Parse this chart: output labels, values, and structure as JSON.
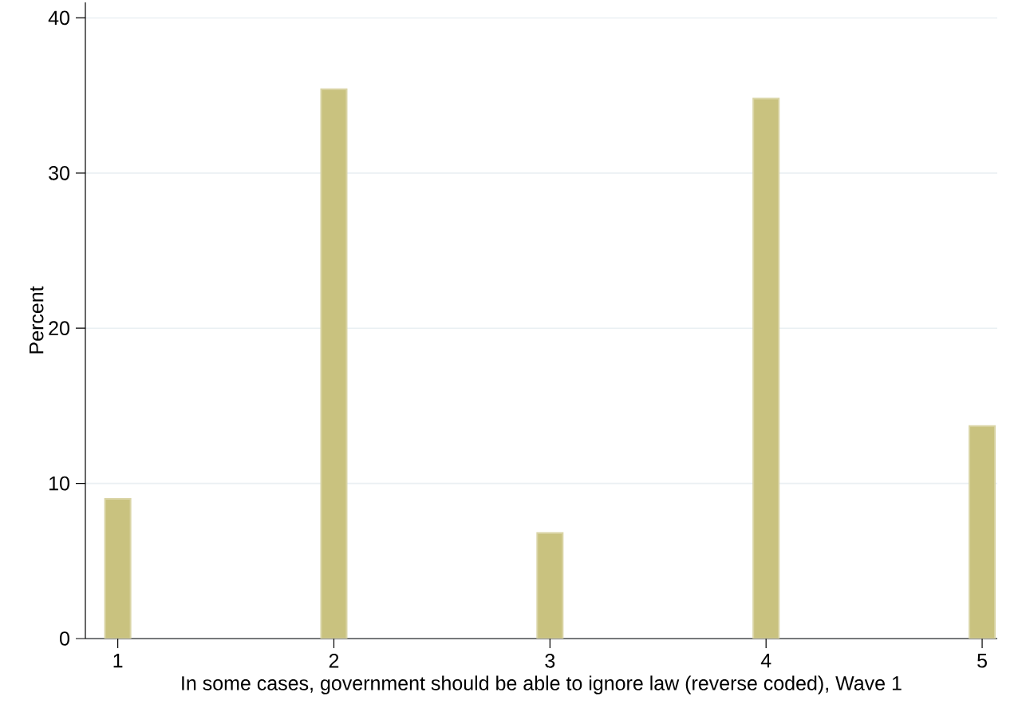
{
  "chart_data": {
    "type": "bar",
    "xlabel": "In some cases, government should be able to ignore law (reverse coded), Wave 1",
    "ylabel": "Percent",
    "x": [
      1,
      2,
      3,
      4,
      5
    ],
    "values": [
      9.0,
      35.4,
      6.8,
      34.8,
      13.7
    ],
    "color": "#c9c27f",
    "xlim": [
      0.85,
      5.07
    ],
    "ylim": [
      0,
      41
    ],
    "xticks": [
      1,
      2,
      3,
      4,
      5
    ],
    "yticks": [
      0,
      10,
      20,
      30,
      40
    ],
    "grid": "y"
  }
}
